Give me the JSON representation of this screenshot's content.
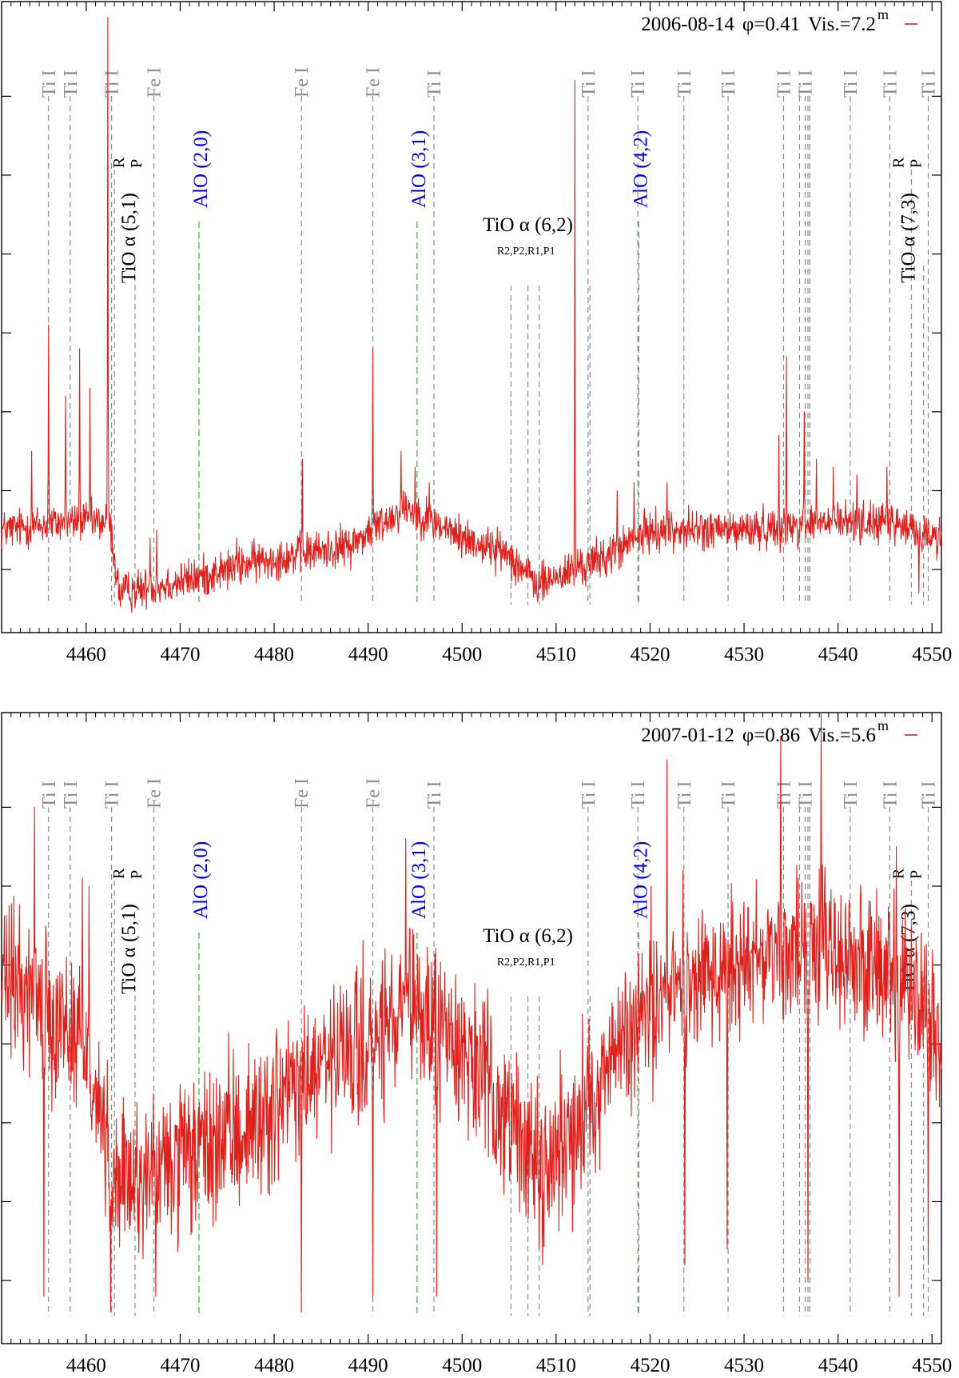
{
  "colors": {
    "spectrum": "#e0201b",
    "atomic_line": "#8c8c8c",
    "alo_line": "#35c235",
    "alo_label": "#0000ee",
    "tio_line": "#8c8c8c",
    "frame": "#000000"
  },
  "chart_data": [
    {
      "type": "line",
      "title": "",
      "xlabel": "",
      "ylabel": "",
      "xlim": [
        4451,
        4551
      ],
      "ylim": [
        0.52,
        1.32
      ],
      "x_ticks": [
        4460,
        4470,
        4480,
        4490,
        4500,
        4510,
        4520,
        4530,
        4540,
        4550
      ],
      "x_tick_labels": [
        "4460",
        "4470",
        "4480",
        "4490",
        "4500",
        "4510",
        "4520",
        "4530",
        "4540",
        "4550"
      ],
      "y_ticks": [
        0.6,
        0.7,
        0.8,
        0.9,
        1.0,
        1.1,
        1.2
      ],
      "legend": {
        "date": "2006-08-14",
        "phase": "φ=0.41",
        "visual": "Vis.=7.2",
        "superscript": "m",
        "position": "top-right"
      },
      "series": [
        {
          "name": "2006-08-14 φ=0.41 Vis.=7.2m",
          "baseline": [
            [
              4451,
              0.65
            ],
            [
              4458,
              0.66
            ],
            [
              4462.5,
              0.66
            ],
            [
              4463.5,
              0.57
            ],
            [
              4468,
              0.58
            ],
            [
              4472,
              0.59
            ],
            [
              4478,
              0.61
            ],
            [
              4483,
              0.62
            ],
            [
              4488,
              0.63
            ],
            [
              4494,
              0.68
            ],
            [
              4500,
              0.64
            ],
            [
              4505,
              0.62
            ],
            [
              4508,
              0.58
            ],
            [
              4512,
              0.6
            ],
            [
              4516,
              0.62
            ],
            [
              4520,
              0.65
            ],
            [
              4530,
              0.65
            ],
            [
              4540,
              0.66
            ],
            [
              4545,
              0.66
            ],
            [
              4551,
              0.64
            ]
          ],
          "noise": 0.022,
          "peaks": [
            [
              4454.2,
              0.75
            ],
            [
              4456.0,
              0.91
            ],
            [
              4457.8,
              0.82
            ],
            [
              4459.3,
              0.88
            ],
            [
              4460.4,
              0.83
            ],
            [
              4462.3,
              1.3
            ],
            [
              4466.8,
              0.64
            ],
            [
              4467.5,
              0.65
            ],
            [
              4476.0,
              0.64
            ],
            [
              4483.0,
              0.74
            ],
            [
              4490.5,
              0.88
            ],
            [
              4493.5,
              0.75
            ],
            [
              4495.0,
              0.73
            ],
            [
              4496.5,
              0.71
            ],
            [
              4512.0,
              1.22
            ],
            [
              4516.5,
              0.7
            ],
            [
              4518.3,
              0.71
            ],
            [
              4521.8,
              0.71
            ],
            [
              4533.7,
              0.77
            ],
            [
              4534.5,
              0.87
            ],
            [
              4536.4,
              0.8
            ],
            [
              4537.7,
              0.74
            ],
            [
              4539.5,
              0.73
            ],
            [
              4542.0,
              0.72
            ],
            [
              4545.2,
              0.73
            ]
          ],
          "dips": [
            [
              4548.6,
              0.57
            ],
            [
              4465.0,
              0.58
            ]
          ]
        }
      ]
    },
    {
      "type": "line",
      "title": "",
      "xlabel": "",
      "ylabel": "",
      "xlim": [
        4451,
        4551
      ],
      "ylim": [
        0.52,
        1.32
      ],
      "x_ticks": [
        4460,
        4470,
        4480,
        4490,
        4500,
        4510,
        4520,
        4530,
        4540,
        4550
      ],
      "x_tick_labels": [
        "4460",
        "4470",
        "4480",
        "4490",
        "4500",
        "4510",
        "4520",
        "4530",
        "4540",
        "4550"
      ],
      "y_ticks": [
        0.6,
        0.7,
        0.8,
        0.9,
        1.0,
        1.1,
        1.2
      ],
      "legend": {
        "date": "2007-01-12",
        "phase": "φ=0.86",
        "visual": "Vis.=5.6",
        "superscript": "m",
        "position": "top-right"
      },
      "series": [
        {
          "name": "2007-01-12 φ=0.86 Vis.=5.6m",
          "baseline": [
            [
              4451,
              0.98
            ],
            [
              4455,
              0.96
            ],
            [
              4460,
              0.9
            ],
            [
              4463,
              0.72
            ],
            [
              4468,
              0.74
            ],
            [
              4472,
              0.76
            ],
            [
              4478,
              0.8
            ],
            [
              4484,
              0.86
            ],
            [
              4490,
              0.9
            ],
            [
              4495,
              0.94
            ],
            [
              4500,
              0.9
            ],
            [
              4505,
              0.8
            ],
            [
              4509,
              0.74
            ],
            [
              4513,
              0.82
            ],
            [
              4518,
              0.92
            ],
            [
              4525,
              0.98
            ],
            [
              4532,
              1.02
            ],
            [
              4538,
              1.02
            ],
            [
              4545,
              1.0
            ],
            [
              4551,
              0.9
            ]
          ],
          "noise": 0.085,
          "peaks": [
            [
              4454.5,
              1.2
            ],
            [
              4459.6,
              1.11
            ],
            [
              4460.3,
              1.1
            ],
            [
              4494.0,
              1.16
            ],
            [
              4520.1,
              1.1
            ],
            [
              4521.8,
              1.26
            ],
            [
              4523.5,
              1.12
            ],
            [
              4533.9,
              1.29
            ],
            [
              4538.2,
              1.34
            ],
            [
              4546.2,
              1.15
            ]
          ],
          "dips": [
            [
              4455.5,
              0.58
            ],
            [
              4462.6,
              0.56
            ],
            [
              4467.4,
              0.58
            ],
            [
              4482.9,
              0.56
            ],
            [
              4490.5,
              0.58
            ],
            [
              4497.3,
              0.58
            ],
            [
              4508.2,
              0.64
            ],
            [
              4523.7,
              0.62
            ],
            [
              4528.2,
              0.64
            ],
            [
              4536.8,
              0.6
            ],
            [
              4546.5,
              0.58
            ],
            [
              4549.6,
              0.62
            ]
          ]
        }
      ]
    }
  ],
  "line_ids": {
    "atomic": [
      {
        "label": "Ti I",
        "x": 4456.0
      },
      {
        "label": "Ti I",
        "x": 4458.3
      },
      {
        "label": "Ti I",
        "x": 4462.7
      },
      {
        "label": "Fe I",
        "x": 4467.2
      },
      {
        "label": "Fe I",
        "x": 4482.9
      },
      {
        "label": "Fe I",
        "x": 4490.5
      },
      {
        "label": "Ti I",
        "x": 4497.0
      },
      {
        "label": "Ti I",
        "x": 4513.4
      },
      {
        "label": "Ti I",
        "x": 4518.7
      },
      {
        "label": "Ti I",
        "x": 4523.6
      },
      {
        "label": "Ti I",
        "x": 4528.3
      },
      {
        "label": "Ti I",
        "x": 4534.2
      },
      {
        "label": "Ti I",
        "x": 4536.5
      },
      {
        "label": "Ti I",
        "x": 4541.3
      },
      {
        "label": "Ti I",
        "x": 4545.5
      },
      {
        "label": "Ti I",
        "x": 4549.6
      }
    ],
    "atomic_extra_x": [
      4535.9,
      4536.8,
      4537.0
    ],
    "alo": [
      {
        "label": "AlO (2,0)",
        "x": 4472.0
      },
      {
        "label": "AlO (3,1)",
        "x": 4495.2
      },
      {
        "label": "AlO (4,2)",
        "x": 4518.8
      }
    ],
    "tio": [
      {
        "label": "TiO α (5,1)",
        "sup": "R",
        "sub": "P",
        "r_x": 4463.0,
        "p_x": 4465.2
      },
      {
        "label": "TiO α (6,2)",
        "sub_label": "R2,P2,R1,P1",
        "heads_x": [
          4505.2,
          4507.0,
          4508.2,
          4513.6
        ]
      },
      {
        "label": "TiO α (7,3)",
        "sup": "R",
        "sub": "P",
        "r_x": 4547.8,
        "p_x": 4549.1
      }
    ]
  }
}
